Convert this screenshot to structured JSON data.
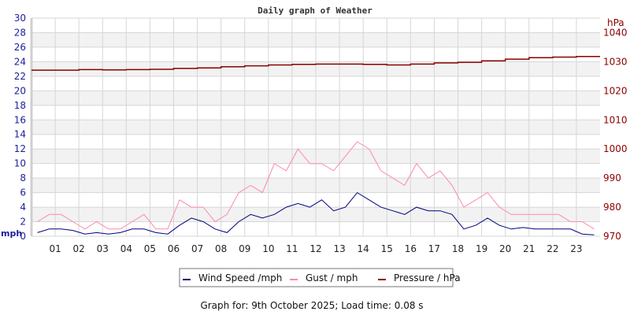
{
  "chart_data": {
    "type": "line",
    "title": "Daily graph of Weather",
    "left_axis": {
      "label": "mph",
      "ylim": [
        0,
        30
      ],
      "ticks": [
        0,
        2,
        4,
        6,
        8,
        10,
        12,
        14,
        16,
        18,
        20,
        22,
        24,
        26,
        28,
        30
      ]
    },
    "right_axis": {
      "label": "hPa",
      "ylim": [
        970,
        1045
      ],
      "ticks": [
        970,
        980,
        990,
        1000,
        1010,
        1020,
        1030,
        1040
      ]
    },
    "x_ticks": [
      "01",
      "02",
      "03",
      "04",
      "05",
      "06",
      "07",
      "08",
      "09",
      "10",
      "11",
      "12",
      "13",
      "14",
      "15",
      "16",
      "17",
      "18",
      "19",
      "20",
      "21",
      "22",
      "23"
    ],
    "xlim_hours": [
      0,
      24
    ],
    "grid": true,
    "legend_position": "bottom",
    "series": [
      {
        "name": "Wind Speed /mph",
        "color": "#000080",
        "axis": "left",
        "x_step_hours": 0.5,
        "values": [
          0.5,
          1,
          1,
          0.8,
          0.3,
          0.5,
          0.3,
          0.5,
          1,
          1,
          0.5,
          0.3,
          1.5,
          2.5,
          2,
          1,
          0.5,
          2,
          3,
          2.5,
          3,
          4,
          4.5,
          4,
          5,
          3.5,
          4,
          6,
          5,
          4,
          3.5,
          3,
          4,
          3.5,
          3.5,
          3,
          1,
          1.5,
          2.5,
          1.5,
          1,
          1.2,
          1,
          1,
          1,
          1,
          0.3,
          0.2
        ]
      },
      {
        "name": "Gust / mph",
        "color": "#ff88aa",
        "axis": "left",
        "x_step_hours": 0.5,
        "values": [
          2,
          3,
          3,
          2,
          1,
          2,
          1,
          1,
          2,
          3,
          1,
          1,
          5,
          4,
          4,
          2,
          3,
          6,
          7,
          6,
          10,
          9,
          12,
          10,
          10,
          9,
          11,
          13,
          12,
          9,
          8,
          7,
          10,
          8,
          9,
          7,
          4,
          5,
          6,
          4,
          3,
          3,
          3,
          3,
          3,
          2,
          2,
          1
        ]
      },
      {
        "name": "Pressure / hPa",
        "color": "#8b0000",
        "axis": "right",
        "x_step_hours": 1,
        "values": [
          1027.1,
          1027.1,
          1027.3,
          1027.2,
          1027.3,
          1027.4,
          1027.7,
          1027.9,
          1028.3,
          1028.6,
          1028.9,
          1029.1,
          1029.2,
          1029.2,
          1029.1,
          1028.9,
          1029.2,
          1029.6,
          1029.8,
          1030.3,
          1030.9,
          1031.4,
          1031.6,
          1031.8,
          1031.8
        ]
      }
    ]
  },
  "footer": "Graph for: 9th October 2025; Load time: 0.08 s"
}
